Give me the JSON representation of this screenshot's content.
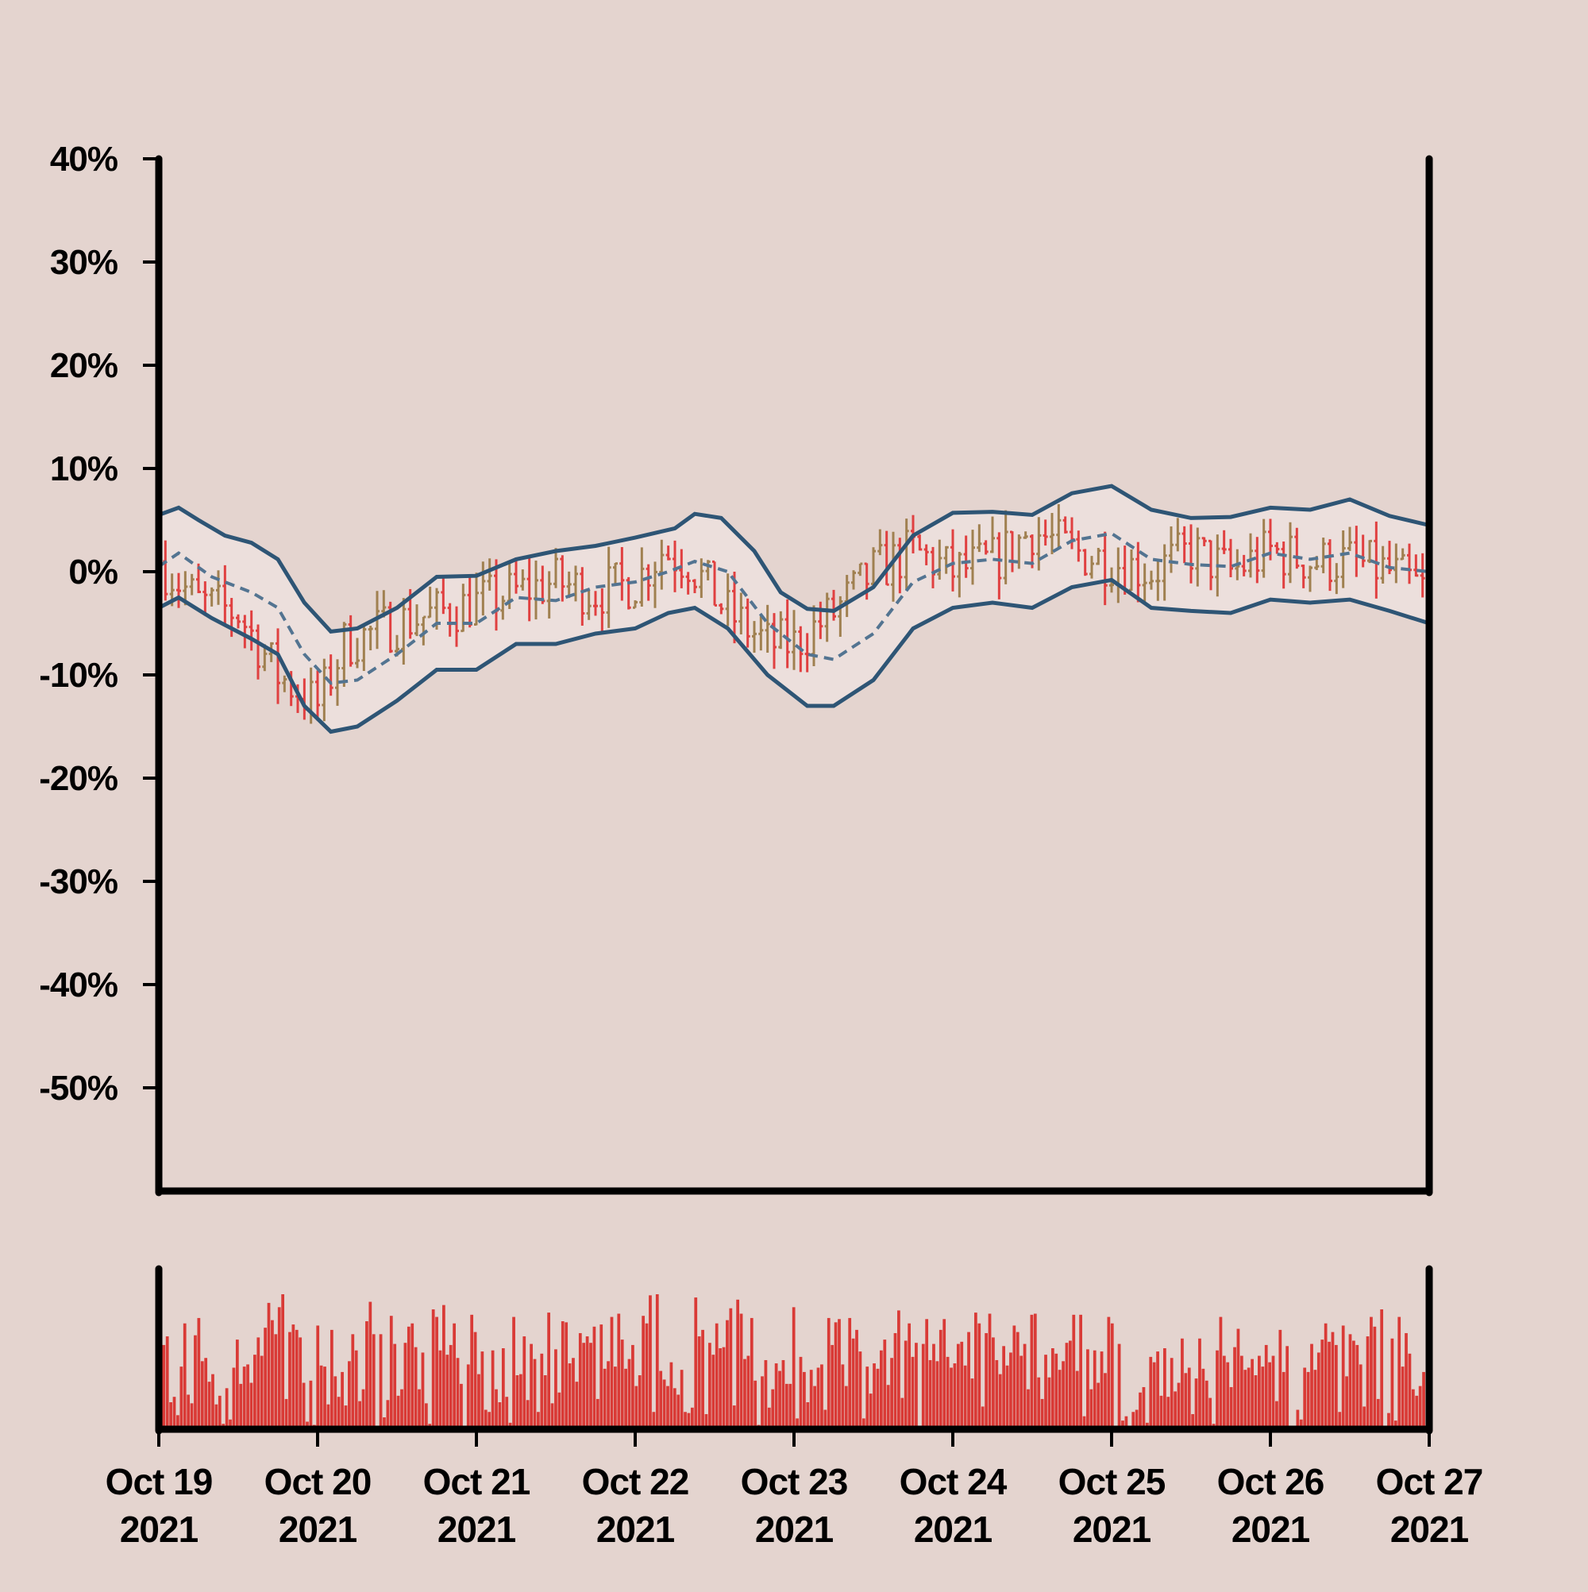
{
  "chart_data": {
    "type": "ohlc",
    "title": "",
    "xlabel": "",
    "ylabel": "",
    "ylim": [
      -60,
      40
    ],
    "y_ticks": [
      {
        "value": 40,
        "label": "40%"
      },
      {
        "value": 30,
        "label": "30%"
      },
      {
        "value": 20,
        "label": "20%"
      },
      {
        "value": 10,
        "label": "10%"
      },
      {
        "value": 0,
        "label": "0%"
      },
      {
        "value": -10,
        "label": "-10%"
      },
      {
        "value": -20,
        "label": "-20%"
      },
      {
        "value": -30,
        "label": "-30%"
      },
      {
        "value": -40,
        "label": "-40%"
      },
      {
        "value": -50,
        "label": "-50%"
      }
    ],
    "x_range": [
      "2021-10-19",
      "2021-10-27"
    ],
    "x_ticks": [
      {
        "date": "2021-10-19",
        "line1": "Oct 19",
        "line2": "2021"
      },
      {
        "date": "2021-10-20",
        "line1": "Oct 20",
        "line2": "2021"
      },
      {
        "date": "2021-10-21",
        "line1": "Oct 21",
        "line2": "2021"
      },
      {
        "date": "2021-10-22",
        "line1": "Oct 22",
        "line2": "2021"
      },
      {
        "date": "2021-10-23",
        "line1": "Oct 23",
        "line2": "2021"
      },
      {
        "date": "2021-10-24",
        "line1": "Oct 24",
        "line2": "2021"
      },
      {
        "date": "2021-10-25",
        "line1": "Oct 25",
        "line2": "2021"
      },
      {
        "date": "2021-10-26",
        "line1": "Oct 26",
        "line2": "2021"
      },
      {
        "date": "2021-10-27",
        "line1": "Oct 27",
        "line2": "2021"
      }
    ],
    "price_series": {
      "style": "ohlc-bars",
      "up_color": "#a08050",
      "down_color": "#e04040",
      "bar_interval_hours": 1,
      "points": [
        {
          "date": "2021-10-19 00:00",
          "value": 1
        },
        {
          "date": "2021-10-19 06:00",
          "value": -3
        },
        {
          "date": "2021-10-19 12:00",
          "value": -4
        },
        {
          "date": "2021-10-19 18:00",
          "value": -10
        },
        {
          "date": "2021-10-20 00:00",
          "value": -13
        },
        {
          "date": "2021-10-20 04:00",
          "value": -7
        },
        {
          "date": "2021-10-20 12:00",
          "value": -5
        },
        {
          "date": "2021-10-20 18:00",
          "value": -4
        },
        {
          "date": "2021-10-21 00:00",
          "value": -3
        },
        {
          "date": "2021-10-21 06:00",
          "value": -2
        },
        {
          "date": "2021-10-21 12:00",
          "value": -1
        },
        {
          "date": "2021-10-21 18:00",
          "value": -2
        },
        {
          "date": "2021-10-22 00:00",
          "value": -1
        },
        {
          "date": "2021-10-22 04:00",
          "value": 2
        },
        {
          "date": "2021-10-22 08:00",
          "value": 1
        },
        {
          "date": "2021-10-22 14:00",
          "value": -4
        },
        {
          "date": "2021-10-22 20:00",
          "value": -7
        },
        {
          "date": "2021-10-23 00:00",
          "value": -7
        },
        {
          "date": "2021-10-23 06:00",
          "value": -4
        },
        {
          "date": "2021-10-23 12:00",
          "value": 0
        },
        {
          "date": "2021-10-23 18:00",
          "value": 2
        },
        {
          "date": "2021-10-24 00:00",
          "value": 0
        },
        {
          "date": "2021-10-24 06:00",
          "value": 1
        },
        {
          "date": "2021-10-24 12:00",
          "value": 4
        },
        {
          "date": "2021-10-24 18:00",
          "value": 2
        },
        {
          "date": "2021-10-25 00:00",
          "value": 1
        },
        {
          "date": "2021-10-25 06:00",
          "value": 0
        },
        {
          "date": "2021-10-25 12:00",
          "value": 2
        },
        {
          "date": "2021-10-25 18:00",
          "value": 0
        },
        {
          "date": "2021-10-26 00:00",
          "value": 2
        },
        {
          "date": "2021-10-26 06:00",
          "value": 1
        },
        {
          "date": "2021-10-26 12:00",
          "value": 1
        },
        {
          "date": "2021-10-26 18:00",
          "value": 0
        },
        {
          "date": "2021-10-27 00:00",
          "value": -2
        }
      ]
    },
    "bollinger_bands": {
      "line_color": "#2e5575",
      "middle_color": "#537491",
      "fill_color": "#ecdfdc",
      "upper": [
        {
          "date": "2021-10-19 00:00",
          "value": 5.5
        },
        {
          "date": "2021-10-19 03:00",
          "value": 6.2
        },
        {
          "date": "2021-10-19 06:00",
          "value": 5
        },
        {
          "date": "2021-10-19 10:00",
          "value": 3.5
        },
        {
          "date": "2021-10-19 14:00",
          "value": 2.8
        },
        {
          "date": "2021-10-19 18:00",
          "value": 1.2
        },
        {
          "date": "2021-10-19 22:00",
          "value": -3
        },
        {
          "date": "2021-10-20 02:00",
          "value": -5.8
        },
        {
          "date": "2021-10-20 06:00",
          "value": -5.5
        },
        {
          "date": "2021-10-20 12:00",
          "value": -3.5
        },
        {
          "date": "2021-10-20 18:00",
          "value": -0.5
        },
        {
          "date": "2021-10-21 00:00",
          "value": -0.4
        },
        {
          "date": "2021-10-21 06:00",
          "value": 1.2
        },
        {
          "date": "2021-10-21 12:00",
          "value": 2
        },
        {
          "date": "2021-10-21 18:00",
          "value": 2.5
        },
        {
          "date": "2021-10-22 00:00",
          "value": 3.3
        },
        {
          "date": "2021-10-22 06:00",
          "value": 4.2
        },
        {
          "date": "2021-10-22 09:00",
          "value": 5.6
        },
        {
          "date": "2021-10-22 13:00",
          "value": 5.2
        },
        {
          "date": "2021-10-22 18:00",
          "value": 2
        },
        {
          "date": "2021-10-22 22:00",
          "value": -2
        },
        {
          "date": "2021-10-23 02:00",
          "value": -3.6
        },
        {
          "date": "2021-10-23 06:00",
          "value": -3.8
        },
        {
          "date": "2021-10-23 12:00",
          "value": -1.5
        },
        {
          "date": "2021-10-23 18:00",
          "value": 3.5
        },
        {
          "date": "2021-10-24 00:00",
          "value": 5.7
        },
        {
          "date": "2021-10-24 06:00",
          "value": 5.8
        },
        {
          "date": "2021-10-24 12:00",
          "value": 5.5
        },
        {
          "date": "2021-10-24 18:00",
          "value": 7.6
        },
        {
          "date": "2021-10-25 00:00",
          "value": 8.3
        },
        {
          "date": "2021-10-25 06:00",
          "value": 6
        },
        {
          "date": "2021-10-25 12:00",
          "value": 5.2
        },
        {
          "date": "2021-10-25 18:00",
          "value": 5.3
        },
        {
          "date": "2021-10-26 00:00",
          "value": 6.2
        },
        {
          "date": "2021-10-26 06:00",
          "value": 6
        },
        {
          "date": "2021-10-26 12:00",
          "value": 7
        },
        {
          "date": "2021-10-26 18:00",
          "value": 5.4
        },
        {
          "date": "2021-10-27 00:00",
          "value": 4.5
        }
      ],
      "middle": [
        {
          "date": "2021-10-19 00:00",
          "value": 0.5
        },
        {
          "date": "2021-10-19 03:00",
          "value": 1.8
        },
        {
          "date": "2021-10-19 08:00",
          "value": -0.5
        },
        {
          "date": "2021-10-19 14:00",
          "value": -2
        },
        {
          "date": "2021-10-19 18:00",
          "value": -3.5
        },
        {
          "date": "2021-10-19 22:00",
          "value": -8
        },
        {
          "date": "2021-10-20 02:00",
          "value": -10.8
        },
        {
          "date": "2021-10-20 06:00",
          "value": -10.5
        },
        {
          "date": "2021-10-20 12:00",
          "value": -8
        },
        {
          "date": "2021-10-20 18:00",
          "value": -5
        },
        {
          "date": "2021-10-21 00:00",
          "value": -5
        },
        {
          "date": "2021-10-21 06:00",
          "value": -2.5
        },
        {
          "date": "2021-10-21 12:00",
          "value": -2.8
        },
        {
          "date": "2021-10-21 18:00",
          "value": -1.5
        },
        {
          "date": "2021-10-22 00:00",
          "value": -1
        },
        {
          "date": "2021-10-22 05:00",
          "value": 0
        },
        {
          "date": "2021-10-22 09:00",
          "value": 1
        },
        {
          "date": "2021-10-22 14:00",
          "value": 0
        },
        {
          "date": "2021-10-22 20:00",
          "value": -5
        },
        {
          "date": "2021-10-23 02:00",
          "value": -8
        },
        {
          "date": "2021-10-23 06:00",
          "value": -8.5
        },
        {
          "date": "2021-10-23 12:00",
          "value": -6
        },
        {
          "date": "2021-10-23 18:00",
          "value": -1
        },
        {
          "date": "2021-10-24 00:00",
          "value": 0.8
        },
        {
          "date": "2021-10-24 06:00",
          "value": 1.2
        },
        {
          "date": "2021-10-24 12:00",
          "value": 0.8
        },
        {
          "date": "2021-10-24 18:00",
          "value": 3
        },
        {
          "date": "2021-10-25 00:00",
          "value": 3.7
        },
        {
          "date": "2021-10-25 06:00",
          "value": 1.2
        },
        {
          "date": "2021-10-25 12:00",
          "value": 0.7
        },
        {
          "date": "2021-10-25 18:00",
          "value": 0.5
        },
        {
          "date": "2021-10-26 00:00",
          "value": 1.8
        },
        {
          "date": "2021-10-26 06:00",
          "value": 1.2
        },
        {
          "date": "2021-10-26 12:00",
          "value": 1.8
        },
        {
          "date": "2021-10-26 18:00",
          "value": 0.4
        },
        {
          "date": "2021-10-27 00:00",
          "value": 0
        }
      ],
      "lower": [
        {
          "date": "2021-10-19 00:00",
          "value": -3.5
        },
        {
          "date": "2021-10-19 03:00",
          "value": -2.5
        },
        {
          "date": "2021-10-19 08:00",
          "value": -4.5
        },
        {
          "date": "2021-10-19 14:00",
          "value": -6.5
        },
        {
          "date": "2021-10-19 18:00",
          "value": -8
        },
        {
          "date": "2021-10-19 22:00",
          "value": -13
        },
        {
          "date": "2021-10-20 02:00",
          "value": -15.5
        },
        {
          "date": "2021-10-20 06:00",
          "value": -15
        },
        {
          "date": "2021-10-20 12:00",
          "value": -12.5
        },
        {
          "date": "2021-10-20 18:00",
          "value": -9.5
        },
        {
          "date": "2021-10-21 00:00",
          "value": -9.5
        },
        {
          "date": "2021-10-21 06:00",
          "value": -7
        },
        {
          "date": "2021-10-21 12:00",
          "value": -7
        },
        {
          "date": "2021-10-21 18:00",
          "value": -6
        },
        {
          "date": "2021-10-22 00:00",
          "value": -5.5
        },
        {
          "date": "2021-10-22 05:00",
          "value": -4
        },
        {
          "date": "2021-10-22 09:00",
          "value": -3.5
        },
        {
          "date": "2021-10-22 14:00",
          "value": -5.5
        },
        {
          "date": "2021-10-22 20:00",
          "value": -10
        },
        {
          "date": "2021-10-23 02:00",
          "value": -13
        },
        {
          "date": "2021-10-23 06:00",
          "value": -13
        },
        {
          "date": "2021-10-23 12:00",
          "value": -10.5
        },
        {
          "date": "2021-10-23 18:00",
          "value": -5.5
        },
        {
          "date": "2021-10-24 00:00",
          "value": -3.5
        },
        {
          "date": "2021-10-24 06:00",
          "value": -3
        },
        {
          "date": "2021-10-24 12:00",
          "value": -3.5
        },
        {
          "date": "2021-10-24 18:00",
          "value": -1.5
        },
        {
          "date": "2021-10-25 00:00",
          "value": -0.8
        },
        {
          "date": "2021-10-25 06:00",
          "value": -3.5
        },
        {
          "date": "2021-10-25 12:00",
          "value": -3.8
        },
        {
          "date": "2021-10-25 18:00",
          "value": -4
        },
        {
          "date": "2021-10-26 00:00",
          "value": -2.7
        },
        {
          "date": "2021-10-26 06:00",
          "value": -3
        },
        {
          "date": "2021-10-26 12:00",
          "value": -2.7
        },
        {
          "date": "2021-10-26 18:00",
          "value": -3.8
        },
        {
          "date": "2021-10-27 00:00",
          "value": -5
        }
      ]
    },
    "volume": {
      "color": "#d93a36",
      "style": "bars",
      "values": [
        35,
        78,
        86,
        25,
        30,
        13,
        58,
        98,
        32,
        24,
        87,
        103,
        63,
        66,
        44,
        51,
        23,
        31,
        5,
        38,
        9,
        57,
        83,
        42,
        58,
        60,
        43,
        69,
        85,
        68,
        94,
        117,
        101,
        88,
        113,
        125,
        28,
        90,
        97,
        92,
        85,
        43,
        7,
        45,
        4,
        96,
        59,
        58,
        23,
        92,
        49,
        30,
        53,
        22,
        63,
        88,
        73,
        26,
        37,
        100,
        118,
        88,
        2,
        88,
        11,
        27,
        105,
        79,
        31,
        37,
        80,
        95,
        98,
        76,
        37,
        71,
        24,
        5,
        111,
        104,
        73,
        115,
        69,
        78,
        98,
        66,
        42,
        3,
        60,
        106,
        90,
        51,
        72,
        18,
        16,
        73,
        37,
        25,
        75,
        30,
        6,
        104,
        50,
        51,
        86,
        27,
        79,
        65,
        16,
        70,
        50,
        108,
        24,
        74,
        34,
        100,
        99,
        61,
        66,
        44,
        89,
        80,
        86,
        80,
        95,
        28,
        97,
        56,
        63,
        104,
        58,
        107,
        83,
        56,
        65,
        78,
        40,
        50,
        105,
        98,
        124,
        16,
        125,
        54,
        46,
        40,
        62,
        38,
        32,
        55,
        16,
        15,
        20,
        122,
        86,
        92,
        14,
        80,
        69,
        98,
        75,
        76,
        101,
        112,
        22,
        120,
        107,
        65,
        68,
        103,
        45,
        4,
        49,
        64,
        20,
        37,
        61,
        54,
        64,
        42,
        42,
        113,
        10,
        67,
        53,
        25,
        55,
        40,
        57,
        60,
        18,
        103,
        78,
        99,
        102,
        60,
        40,
        103,
        84,
        92,
        72,
        10,
        58,
        33,
        61,
        56,
        73,
        83,
        41,
        66,
        89,
        110,
        29,
        82,
        98,
        67,
        80,
        3,
        79,
        102,
        64,
        79,
        63,
        92,
        102,
        67,
        57,
        61,
        79,
        81,
        59,
        90,
        47,
        108,
        98,
        21,
        89,
        107,
        85,
        64,
        51,
        77,
        59,
        71,
        96,
        90,
        68,
        79,
        37,
        106,
        107,
        48,
        28,
        69,
        48,
        75,
        70,
        55,
        63,
        80,
        82,
        106,
        54,
        106,
        12,
        74,
        37,
        73,
        43,
        72,
        52,
        104,
        98,
        3,
        79,
        8,
        12,
        0,
        16,
        18,
        34,
        39,
        6,
        67,
        62,
        72,
        31,
        75,
        30,
        66,
        35,
        43,
        84,
        52,
        57,
        14,
        47,
        84,
        56,
        45,
        29,
        5,
        73,
        104,
        68,
        62,
        39,
        76,
        93,
        68,
        55,
        57,
        65,
        50,
        68,
        58,
        78,
        62,
        68,
        26,
        92,
        53,
        77,
        0,
        1,
        18,
        9,
        57,
        53,
        79,
        55,
        71,
        83,
        98,
        81,
        90,
        78,
        16,
        96,
        49,
        88,
        82,
        78,
        60,
        21,
        86,
        104,
        95,
        28,
        111,
        3,
        15,
        84,
        8,
        104,
        58,
        89,
        70,
        37,
        31,
        40,
        53,
        92
      ]
    }
  }
}
